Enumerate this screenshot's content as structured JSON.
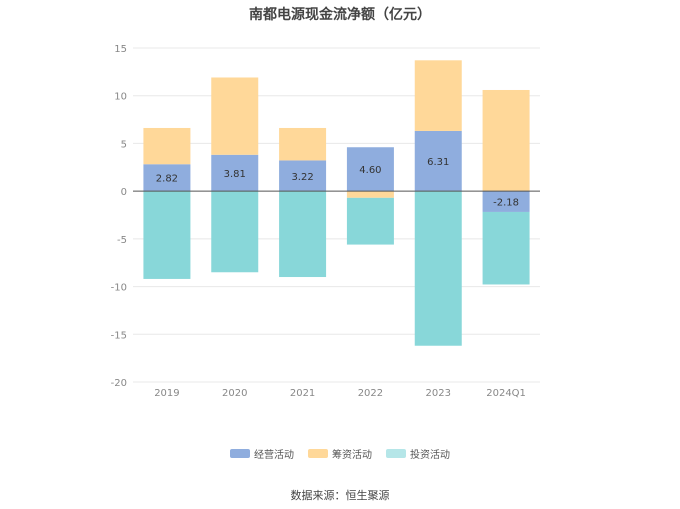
{
  "chart_data": {
    "type": "bar",
    "stacked": true,
    "title": "南都电源现金流净额（亿元）",
    "categories": [
      "2019",
      "2020",
      "2021",
      "2022",
      "2023",
      "2024Q1"
    ],
    "ylim": [
      -20,
      15
    ],
    "yticks": [
      15,
      10,
      5,
      0,
      -5,
      -10,
      -15,
      -20
    ],
    "grid": true,
    "legend_position": "bottom",
    "series": [
      {
        "name": "经营活动",
        "color": "#8fadde",
        "values": [
          2.82,
          3.81,
          3.22,
          4.6,
          6.31,
          -2.18
        ]
      },
      {
        "name": "筹资活动",
        "color": "#ffd899",
        "values": [
          3.8,
          8.1,
          3.4,
          -0.7,
          7.4,
          10.6
        ]
      },
      {
        "name": "投资活动",
        "color": "#88d7d9",
        "values": [
          -9.2,
          -8.5,
          -9.0,
          -4.9,
          -16.2,
          -7.6
        ]
      }
    ],
    "data_labels": [
      "2.82",
      "3.81",
      "3.22",
      "4.60",
      "6.31",
      "-2.18"
    ]
  },
  "source": "数据来源：恒生聚源"
}
